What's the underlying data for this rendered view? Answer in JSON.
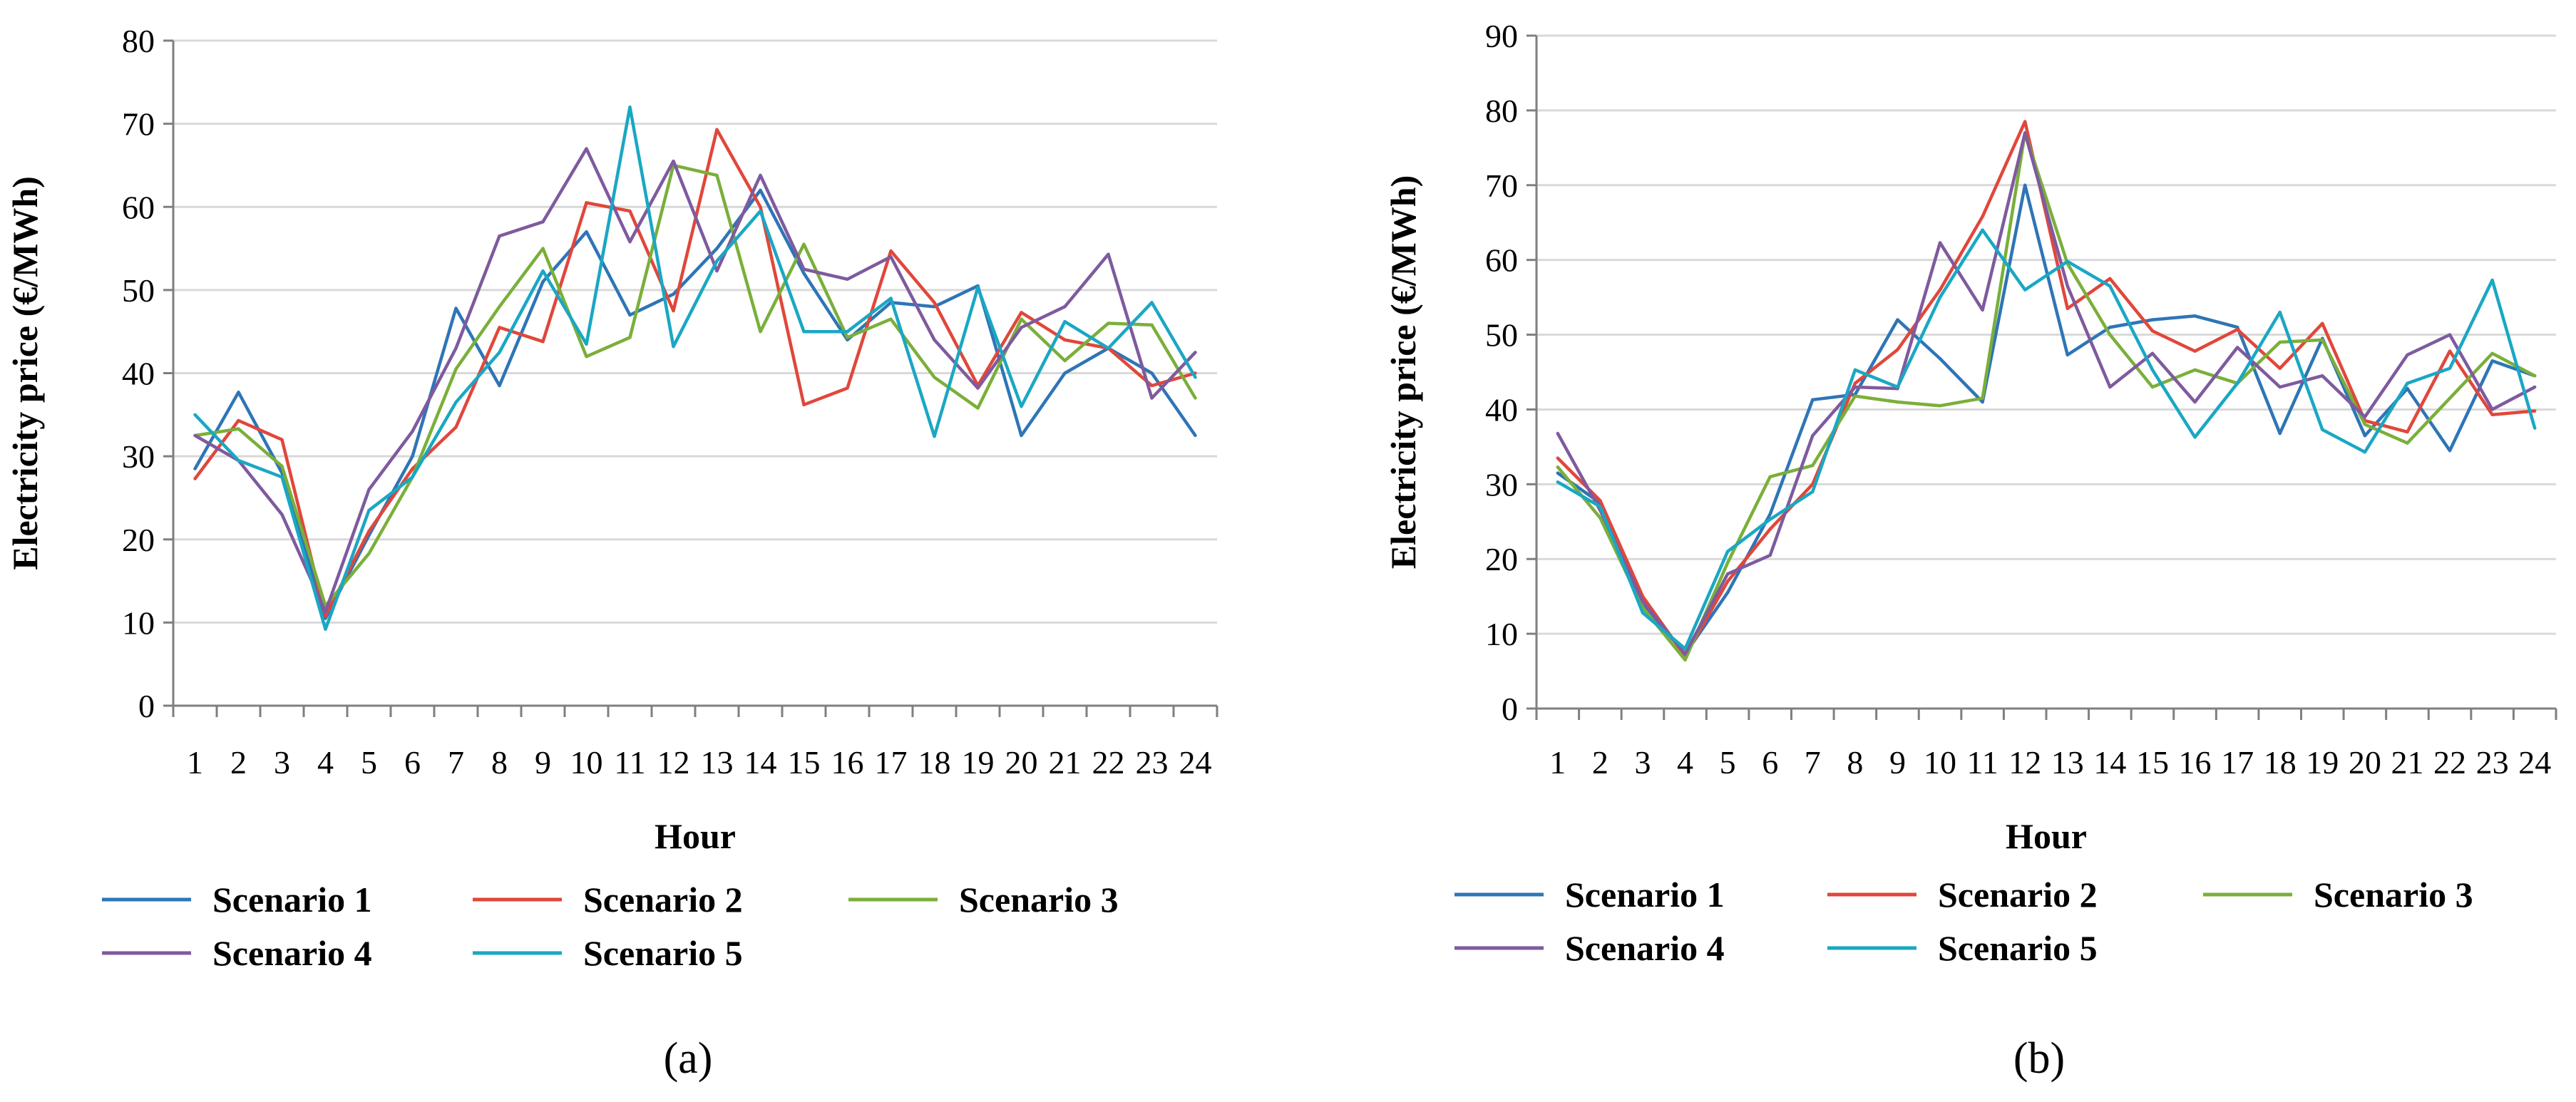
{
  "colors": {
    "Scenario 1": "#2e75b6",
    "Scenario 2": "#e0473b",
    "Scenario 3": "#7aaf3a",
    "Scenario 4": "#7f5a9e",
    "Scenario 5": "#1aa7c4"
  },
  "chart_data": [
    {
      "type": "line",
      "panel_label": "(a)",
      "xlabel": "Hour",
      "ylabel": "Electricity price (€/MWh)",
      "ylim": [
        0,
        80
      ],
      "yticks": [
        0,
        10,
        20,
        30,
        40,
        50,
        60,
        70,
        80
      ],
      "grid": true,
      "legend": "bottom",
      "categories": [
        "1",
        "2",
        "3",
        "4",
        "5",
        "6",
        "7",
        "8",
        "9",
        "10",
        "11",
        "12",
        "13",
        "14",
        "15",
        "16",
        "17",
        "18",
        "19",
        "20",
        "21",
        "22",
        "23",
        "24"
      ],
      "series": [
        {
          "name": "Scenario 1",
          "values": [
            28.5,
            37.7,
            28.0,
            10.5,
            20.5,
            30.0,
            47.8,
            38.5,
            51.0,
            57.0,
            47.0,
            49.5,
            55.0,
            62.0,
            52.0,
            44.0,
            48.5,
            48.0,
            50.5,
            32.5,
            40.0,
            43.0,
            40.0,
            32.5
          ]
        },
        {
          "name": "Scenario 2",
          "values": [
            27.3,
            34.3,
            32.0,
            10.8,
            21.0,
            28.5,
            33.5,
            45.5,
            43.8,
            60.5,
            59.5,
            47.5,
            69.3,
            60.0,
            36.2,
            38.2,
            54.7,
            48.5,
            38.5,
            47.3,
            44.0,
            43.0,
            38.5,
            40.0
          ]
        },
        {
          "name": "Scenario 3",
          "values": [
            32.5,
            33.3,
            28.8,
            12.0,
            18.3,
            27.5,
            40.5,
            48.0,
            55.0,
            42.0,
            44.3,
            65.0,
            63.8,
            45.0,
            55.5,
            44.3,
            46.5,
            39.5,
            35.8,
            46.5,
            41.5,
            46.0,
            45.8,
            37.0
          ]
        },
        {
          "name": "Scenario 4",
          "values": [
            32.5,
            29.5,
            23.0,
            11.3,
            26.0,
            33.0,
            43.0,
            56.5,
            58.2,
            67.0,
            55.8,
            65.5,
            52.3,
            63.8,
            52.5,
            51.3,
            54.0,
            44.0,
            38.2,
            45.5,
            48.0,
            54.3,
            37.0,
            42.5
          ]
        },
        {
          "name": "Scenario 5",
          "values": [
            35.0,
            29.5,
            27.5,
            9.2,
            23.5,
            27.5,
            36.5,
            42.5,
            52.3,
            43.5,
            72.0,
            43.2,
            53.5,
            59.5,
            45.0,
            45.0,
            49.0,
            32.4,
            50.3,
            36.0,
            46.2,
            43.0,
            48.5,
            39.5
          ]
        }
      ]
    },
    {
      "type": "line",
      "panel_label": "(b)",
      "xlabel": "Hour",
      "ylabel": "Electricity price (€/MWh)",
      "ylim": [
        0,
        90
      ],
      "yticks": [
        0,
        10,
        20,
        30,
        40,
        50,
        60,
        70,
        80,
        90
      ],
      "grid": true,
      "legend": "bottom",
      "categories": [
        "1",
        "2",
        "3",
        "4",
        "5",
        "6",
        "7",
        "8",
        "9",
        "10",
        "11",
        "12",
        "13",
        "14",
        "15",
        "16",
        "17",
        "18",
        "19",
        "20",
        "21",
        "22",
        "23",
        "24"
      ],
      "series": [
        {
          "name": "Scenario 1",
          "values": [
            31.5,
            27.5,
            14.0,
            7.3,
            15.5,
            26.0,
            41.3,
            42.0,
            52.0,
            46.8,
            41.0,
            70.0,
            47.3,
            51.0,
            52.0,
            52.5,
            51.0,
            36.8,
            49.5,
            36.5,
            42.8,
            34.5,
            46.5,
            44.5
          ]
        },
        {
          "name": "Scenario 2",
          "values": [
            33.5,
            27.8,
            15.0,
            7.0,
            17.0,
            24.0,
            30.0,
            43.5,
            48.0,
            56.0,
            65.8,
            78.5,
            53.5,
            57.5,
            50.5,
            47.8,
            50.7,
            45.5,
            51.5,
            38.5,
            37.0,
            47.8,
            39.3,
            39.8
          ]
        },
        {
          "name": "Scenario 3",
          "values": [
            32.3,
            25.5,
            13.5,
            6.5,
            19.5,
            31.0,
            32.5,
            41.8,
            41.0,
            40.5,
            41.5,
            77.0,
            59.5,
            50.0,
            43.0,
            45.3,
            43.5,
            49.0,
            49.3,
            38.0,
            35.5,
            41.5,
            47.5,
            44.5
          ]
        },
        {
          "name": "Scenario 4",
          "values": [
            36.8,
            26.5,
            14.3,
            7.3,
            18.0,
            20.5,
            36.5,
            43.0,
            42.8,
            62.3,
            53.3,
            77.0,
            56.5,
            43.0,
            47.5,
            41.0,
            48.3,
            43.0,
            44.5,
            39.0,
            47.3,
            50.0,
            40.0,
            43.0
          ]
        },
        {
          "name": "Scenario 5",
          "values": [
            30.3,
            27.0,
            12.8,
            8.0,
            21.0,
            25.3,
            29.0,
            45.3,
            43.0,
            55.0,
            64.0,
            56.0,
            59.8,
            56.5,
            45.3,
            36.3,
            43.5,
            53.0,
            37.3,
            34.3,
            43.5,
            45.5,
            57.3,
            37.5
          ]
        }
      ]
    }
  ]
}
